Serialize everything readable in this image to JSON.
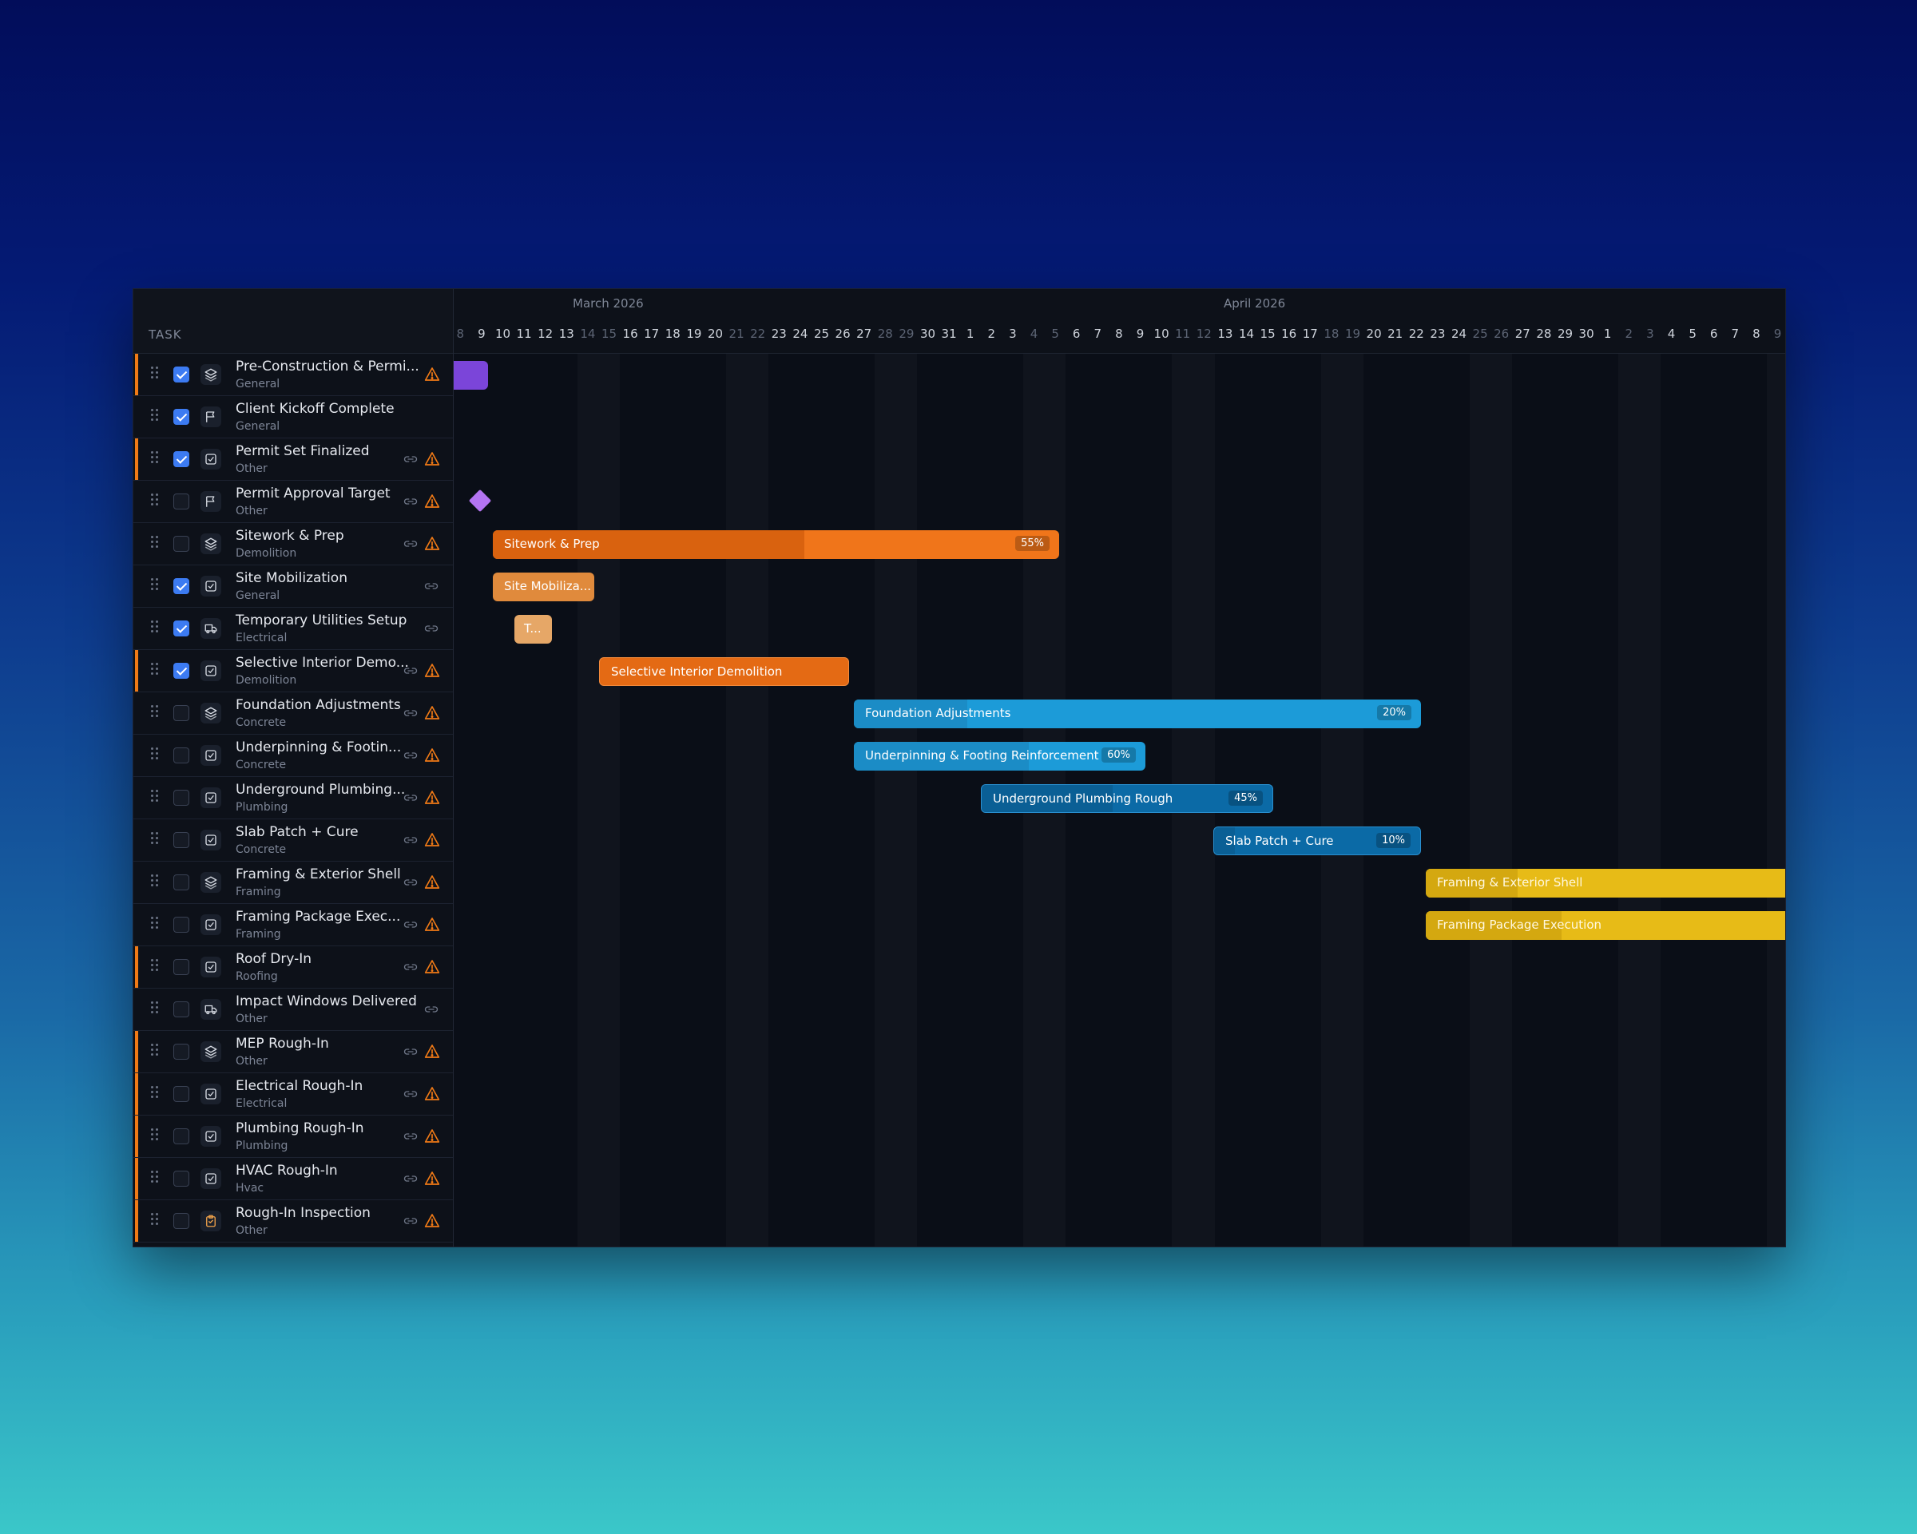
{
  "header": {
    "task_label": "TASK",
    "months": [
      "March 2026",
      "April 2026"
    ]
  },
  "timeline": {
    "days": [
      "8",
      "9",
      "10",
      "11",
      "12",
      "13",
      "14",
      "15",
      "16",
      "17",
      "18",
      "19",
      "20",
      "21",
      "22",
      "23",
      "24",
      "25",
      "26",
      "27",
      "28",
      "29",
      "30",
      "31",
      "1",
      "2",
      "3",
      "4",
      "5",
      "6",
      "7",
      "8",
      "9",
      "10",
      "11",
      "12",
      "13",
      "14",
      "15",
      "16",
      "17",
      "18",
      "19",
      "20",
      "21",
      "22",
      "23",
      "24",
      "25",
      "26",
      "27",
      "28",
      "29",
      "30",
      "1",
      "2",
      "3",
      "4",
      "5",
      "6",
      "7",
      "8",
      "9"
    ],
    "weekend_indices": [
      0,
      6,
      7,
      13,
      14,
      20,
      21,
      27,
      28,
      34,
      35,
      41,
      42,
      48,
      49,
      55,
      56,
      62
    ]
  },
  "tasks": [
    {
      "name": "Pre-Construction & Permi...",
      "category": "General",
      "checked": true,
      "icon": "layers-icon",
      "link": false,
      "warning": true,
      "flag": true
    },
    {
      "name": "Client Kickoff Complete",
      "category": "General",
      "checked": true,
      "icon": "flag-icon",
      "link": false,
      "warning": false,
      "flag": false
    },
    {
      "name": "Permit Set Finalized",
      "category": "Other",
      "checked": true,
      "icon": "task-check-icon",
      "link": true,
      "warning": true,
      "flag": true
    },
    {
      "name": "Permit Approval Target",
      "category": "Other",
      "checked": false,
      "icon": "flag-icon",
      "link": true,
      "warning": true,
      "flag": false
    },
    {
      "name": "Sitework & Prep",
      "category": "Demolition",
      "checked": false,
      "icon": "layers-icon",
      "link": true,
      "warning": true,
      "flag": false
    },
    {
      "name": "Site Mobilization",
      "category": "General",
      "checked": true,
      "icon": "task-check-icon",
      "link": true,
      "warning": false,
      "flag": false
    },
    {
      "name": "Temporary Utilities Setup",
      "category": "Electrical",
      "checked": true,
      "icon": "truck-icon",
      "link": true,
      "warning": false,
      "flag": false
    },
    {
      "name": "Selective Interior Demo...",
      "category": "Demolition",
      "checked": true,
      "icon": "task-check-icon",
      "link": true,
      "warning": true,
      "flag": true
    },
    {
      "name": "Foundation Adjustments",
      "category": "Concrete",
      "checked": false,
      "icon": "layers-icon",
      "link": true,
      "warning": true,
      "flag": false
    },
    {
      "name": "Underpinning & Footin...",
      "category": "Concrete",
      "checked": false,
      "icon": "task-check-icon",
      "link": true,
      "warning": true,
      "flag": false
    },
    {
      "name": "Underground Plumbing...",
      "category": "Plumbing",
      "checked": false,
      "icon": "task-check-icon",
      "link": true,
      "warning": true,
      "flag": false
    },
    {
      "name": "Slab Patch + Cure",
      "category": "Concrete",
      "checked": false,
      "icon": "task-check-icon",
      "link": true,
      "warning": true,
      "flag": false
    },
    {
      "name": "Framing & Exterior Shell",
      "category": "Framing",
      "checked": false,
      "icon": "layers-icon",
      "link": true,
      "warning": true,
      "flag": false
    },
    {
      "name": "Framing Package Exec...",
      "category": "Framing",
      "checked": false,
      "icon": "task-check-icon",
      "link": true,
      "warning": true,
      "flag": false
    },
    {
      "name": "Roof Dry-In",
      "category": "Roofing",
      "checked": false,
      "icon": "task-check-icon",
      "link": true,
      "warning": true,
      "flag": true
    },
    {
      "name": "Impact Windows Delivered",
      "category": "Other",
      "checked": false,
      "icon": "truck-icon",
      "link": true,
      "warning": false,
      "flag": false
    },
    {
      "name": "MEP Rough-In",
      "category": "Other",
      "checked": false,
      "icon": "layers-icon",
      "link": true,
      "warning": true,
      "flag": true
    },
    {
      "name": "Electrical Rough-In",
      "category": "Electrical",
      "checked": false,
      "icon": "task-check-icon",
      "link": true,
      "warning": true,
      "flag": true
    },
    {
      "name": "Plumbing Rough-In",
      "category": "Plumbing",
      "checked": false,
      "icon": "task-check-icon",
      "link": true,
      "warning": true,
      "flag": true
    },
    {
      "name": "HVAC Rough-In",
      "category": "Hvac",
      "checked": false,
      "icon": "task-check-icon",
      "link": true,
      "warning": true,
      "flag": true
    },
    {
      "name": "Rough-In Inspection",
      "category": "Other",
      "checked": false,
      "icon": "clipboard-icon",
      "link": true,
      "warning": true,
      "flag": true
    }
  ],
  "bars": [
    {
      "label": "Sitework & Prep",
      "percent": "55%"
    },
    {
      "label": "Site Mobiliza...",
      "percent": ""
    },
    {
      "label": "T...",
      "percent": ""
    },
    {
      "label": "Selective Interior Demolition",
      "percent": ""
    },
    {
      "label": "Foundation Adjustments",
      "percent": "20%"
    },
    {
      "label": "Underpinning & Footing Reinforcement",
      "percent": "60%"
    },
    {
      "label": "Underground Plumbing Rough",
      "percent": "45%"
    },
    {
      "label": "Slab Patch + Cure",
      "percent": "10%"
    },
    {
      "label": "Framing & Exterior Shell",
      "percent": ""
    },
    {
      "label": "Framing Package Execution",
      "percent": ""
    }
  ],
  "colors": {
    "accent": "#3c7bf2",
    "warning": "#f07a16",
    "orange_bar": "#f0751a",
    "blue_bar": "#1c9bd8",
    "gold_bar": "#e7bb17",
    "milestone": "#b474f2"
  }
}
